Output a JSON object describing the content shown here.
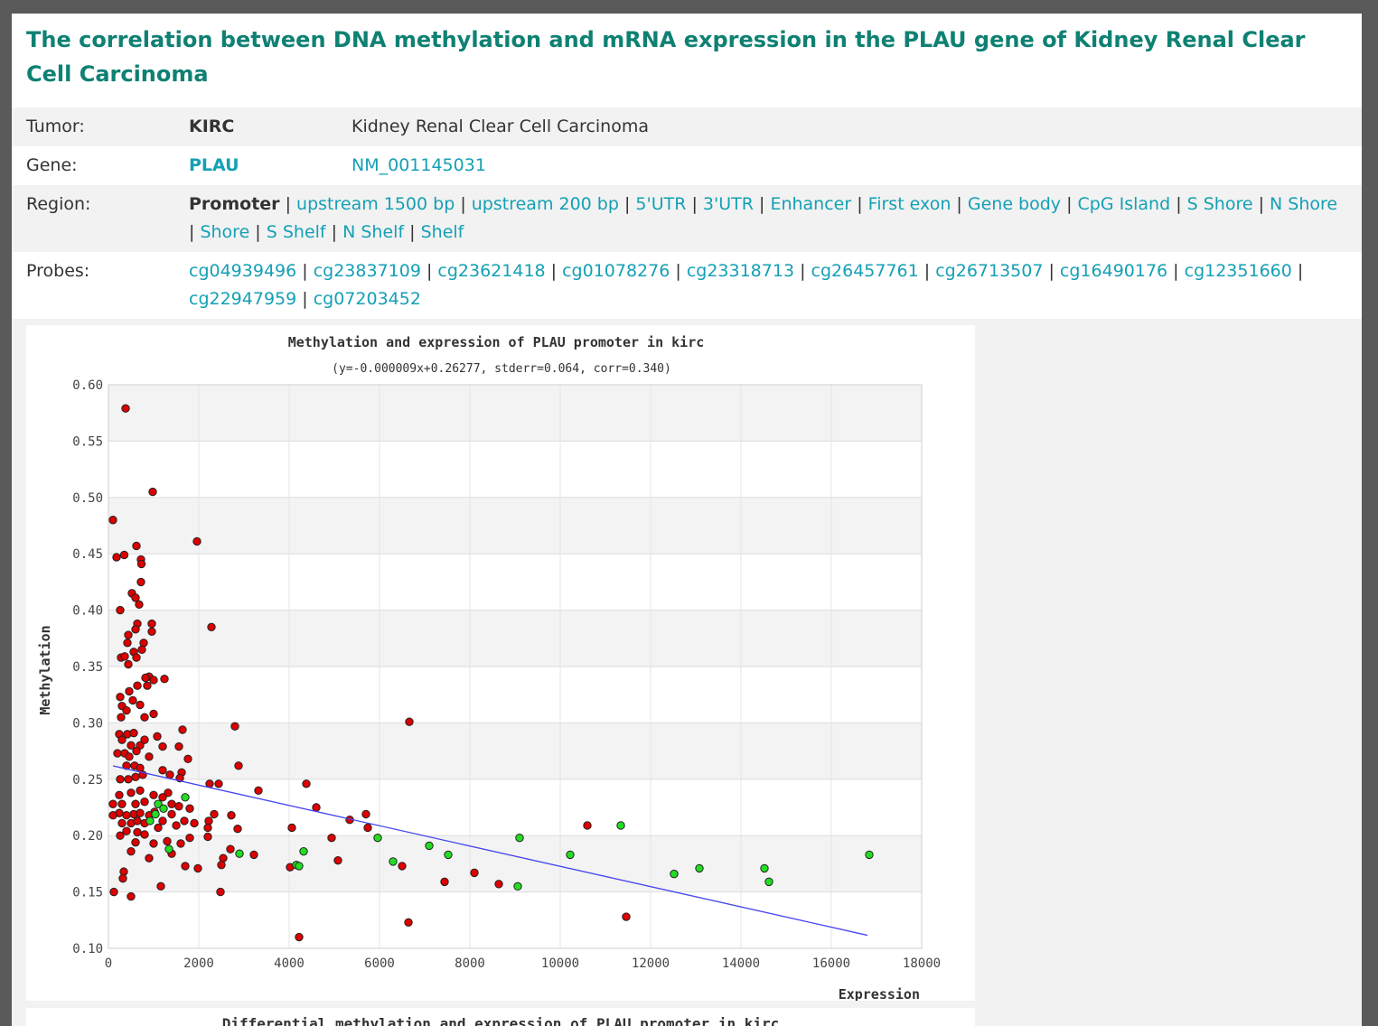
{
  "title": "The correlation between DNA methylation and mRNA expression in the PLAU gene of Kidney Renal Clear Cell Carcinoma",
  "info": {
    "tumor": {
      "label": "Tumor:",
      "code": "KIRC",
      "name": "Kidney Renal Clear Cell Carcinoma"
    },
    "gene": {
      "label": "Gene:",
      "symbol": "PLAU",
      "accession": "NM_001145031"
    },
    "region": {
      "label": "Region:",
      "selected": "Promoter",
      "links": [
        "upstream 1500 bp",
        "upstream 200 bp",
        "5'UTR",
        "3'UTR",
        "Enhancer",
        "First exon",
        "Gene body",
        "CpG Island",
        "S Shore",
        "N Shore",
        "Shore",
        "S Shelf",
        "N Shelf",
        "Shelf"
      ]
    },
    "probes": {
      "label": "Probes:",
      "links": [
        "cg04939496",
        "cg23837109",
        "cg23621418",
        "cg01078276",
        "cg23318713",
        "cg26457761",
        "cg26713507",
        "cg16490176",
        "cg12351660",
        "cg22947959",
        "cg07203452"
      ]
    }
  },
  "chart_data": {
    "type": "scatter",
    "title": "Methylation and expression of PLAU promoter  in kirc",
    "subtitle": "(y=-0.000009x+0.26277, stderr=0.064, corr=0.340)",
    "xlabel": "Expression",
    "ylabel": "Methylation",
    "xlim": [
      0,
      18000
    ],
    "ylim": [
      0.1,
      0.6
    ],
    "xticks": [
      "0",
      "2000",
      "4000",
      "6000",
      "8000",
      "10000",
      "12000",
      "14000",
      "16000",
      "18000"
    ],
    "yticks": [
      "0.10",
      "0.15",
      "0.20",
      "0.25",
      "0.30",
      "0.35",
      "0.40",
      "0.45",
      "0.50",
      "0.55",
      "0.60"
    ],
    "grid": true,
    "colors": {
      "tumor": "#dd0000",
      "normal": "#22dd22",
      "fit": "#4444ee"
    },
    "fit_line": {
      "slope": -9e-06,
      "intercept": 0.26277,
      "x_range": [
        100,
        16800
      ]
    },
    "series": [
      {
        "color": "#dd0000",
        "points": [
          [
            380,
            0.579
          ],
          [
            980,
            0.505
          ],
          [
            100,
            0.48
          ],
          [
            1960,
            0.461
          ],
          [
            180,
            0.447
          ],
          [
            350,
            0.449
          ],
          [
            620,
            0.457
          ],
          [
            720,
            0.445
          ],
          [
            730,
            0.441
          ],
          [
            720,
            0.425
          ],
          [
            520,
            0.415
          ],
          [
            600,
            0.411
          ],
          [
            680,
            0.405
          ],
          [
            260,
            0.4
          ],
          [
            640,
            0.388
          ],
          [
            960,
            0.388
          ],
          [
            2280,
            0.385
          ],
          [
            600,
            0.383
          ],
          [
            960,
            0.381
          ],
          [
            440,
            0.378
          ],
          [
            420,
            0.371
          ],
          [
            780,
            0.371
          ],
          [
            560,
            0.363
          ],
          [
            740,
            0.365
          ],
          [
            280,
            0.358
          ],
          [
            360,
            0.359
          ],
          [
            620,
            0.358
          ],
          [
            440,
            0.352
          ],
          [
            900,
            0.341
          ],
          [
            1240,
            0.339
          ],
          [
            820,
            0.34
          ],
          [
            1000,
            0.338
          ],
          [
            860,
            0.333
          ],
          [
            640,
            0.333
          ],
          [
            460,
            0.328
          ],
          [
            260,
            0.323
          ],
          [
            540,
            0.32
          ],
          [
            300,
            0.315
          ],
          [
            700,
            0.316
          ],
          [
            400,
            0.311
          ],
          [
            280,
            0.305
          ],
          [
            800,
            0.305
          ],
          [
            1000,
            0.308
          ],
          [
            6660,
            0.301
          ],
          [
            2800,
            0.297
          ],
          [
            1640,
            0.294
          ],
          [
            240,
            0.29
          ],
          [
            420,
            0.29
          ],
          [
            560,
            0.291
          ],
          [
            1080,
            0.288
          ],
          [
            700,
            0.28
          ],
          [
            300,
            0.285
          ],
          [
            500,
            0.28
          ],
          [
            800,
            0.285
          ],
          [
            1200,
            0.279
          ],
          [
            1560,
            0.279
          ],
          [
            200,
            0.273
          ],
          [
            360,
            0.273
          ],
          [
            460,
            0.27
          ],
          [
            620,
            0.275
          ],
          [
            900,
            0.27
          ],
          [
            1760,
            0.268
          ],
          [
            2880,
            0.262
          ],
          [
            400,
            0.262
          ],
          [
            580,
            0.262
          ],
          [
            700,
            0.26
          ],
          [
            1200,
            0.258
          ],
          [
            1620,
            0.256
          ],
          [
            1580,
            0.251
          ],
          [
            1360,
            0.254
          ],
          [
            260,
            0.25
          ],
          [
            440,
            0.25
          ],
          [
            600,
            0.252
          ],
          [
            760,
            0.254
          ],
          [
            2240,
            0.246
          ],
          [
            2440,
            0.246
          ],
          [
            4380,
            0.246
          ],
          [
            3320,
            0.24
          ],
          [
            1320,
            0.238
          ],
          [
            240,
            0.236
          ],
          [
            500,
            0.238
          ],
          [
            700,
            0.24
          ],
          [
            1000,
            0.236
          ],
          [
            1200,
            0.234
          ],
          [
            1400,
            0.228
          ],
          [
            300,
            0.228
          ],
          [
            100,
            0.228
          ],
          [
            600,
            0.228
          ],
          [
            800,
            0.23
          ],
          [
            4600,
            0.225
          ],
          [
            1800,
            0.224
          ],
          [
            1560,
            0.226
          ],
          [
            1020,
            0.221
          ],
          [
            240,
            0.22
          ],
          [
            400,
            0.218
          ],
          [
            560,
            0.219
          ],
          [
            700,
            0.22
          ],
          [
            900,
            0.218
          ],
          [
            1400,
            0.219
          ],
          [
            100,
            0.218
          ],
          [
            2340,
            0.219
          ],
          [
            2720,
            0.218
          ],
          [
            5700,
            0.219
          ],
          [
            5340,
            0.214
          ],
          [
            2220,
            0.213
          ],
          [
            1680,
            0.213
          ],
          [
            1200,
            0.213
          ],
          [
            300,
            0.211
          ],
          [
            500,
            0.211
          ],
          [
            640,
            0.213
          ],
          [
            800,
            0.211
          ],
          [
            1500,
            0.209
          ],
          [
            1900,
            0.211
          ],
          [
            4060,
            0.207
          ],
          [
            2860,
            0.206
          ],
          [
            2200,
            0.207
          ],
          [
            5740,
            0.207
          ],
          [
            10600,
            0.209
          ],
          [
            1100,
            0.207
          ],
          [
            400,
            0.204
          ],
          [
            640,
            0.203
          ],
          [
            260,
            0.2
          ],
          [
            800,
            0.201
          ],
          [
            2200,
            0.199
          ],
          [
            4940,
            0.198
          ],
          [
            1800,
            0.198
          ],
          [
            1300,
            0.195
          ],
          [
            600,
            0.194
          ],
          [
            1000,
            0.193
          ],
          [
            1600,
            0.193
          ],
          [
            2700,
            0.188
          ],
          [
            3220,
            0.183
          ],
          [
            500,
            0.186
          ],
          [
            1400,
            0.184
          ],
          [
            900,
            0.18
          ],
          [
            2540,
            0.18
          ],
          [
            5080,
            0.178
          ],
          [
            6500,
            0.173
          ],
          [
            2500,
            0.174
          ],
          [
            1700,
            0.173
          ],
          [
            1980,
            0.171
          ],
          [
            4020,
            0.172
          ],
          [
            7440,
            0.159
          ],
          [
            8100,
            0.167
          ],
          [
            8640,
            0.157
          ],
          [
            340,
            0.168
          ],
          [
            320,
            0.162
          ],
          [
            1160,
            0.155
          ],
          [
            2480,
            0.15
          ],
          [
            120,
            0.15
          ],
          [
            500,
            0.146
          ],
          [
            11460,
            0.128
          ],
          [
            6640,
            0.123
          ],
          [
            4220,
            0.11
          ]
        ]
      },
      {
        "color": "#22dd22",
        "points": [
          [
            1700,
            0.234
          ],
          [
            1100,
            0.228
          ],
          [
            1220,
            0.224
          ],
          [
            1040,
            0.219
          ],
          [
            920,
            0.213
          ],
          [
            5960,
            0.198
          ],
          [
            9100,
            0.198
          ],
          [
            7100,
            0.191
          ],
          [
            4320,
            0.186
          ],
          [
            1340,
            0.188
          ],
          [
            2900,
            0.184
          ],
          [
            7520,
            0.183
          ],
          [
            10220,
            0.183
          ],
          [
            16840,
            0.183
          ],
          [
            6300,
            0.177
          ],
          [
            4160,
            0.174
          ],
          [
            4220,
            0.173
          ],
          [
            13080,
            0.171
          ],
          [
            14520,
            0.171
          ],
          [
            12520,
            0.166
          ],
          [
            14620,
            0.159
          ],
          [
            9060,
            0.155
          ],
          [
            11340,
            0.209
          ]
        ]
      }
    ]
  },
  "chart2": {
    "title": "Differential methylation and expression of PLAU promoter  in kirc"
  }
}
